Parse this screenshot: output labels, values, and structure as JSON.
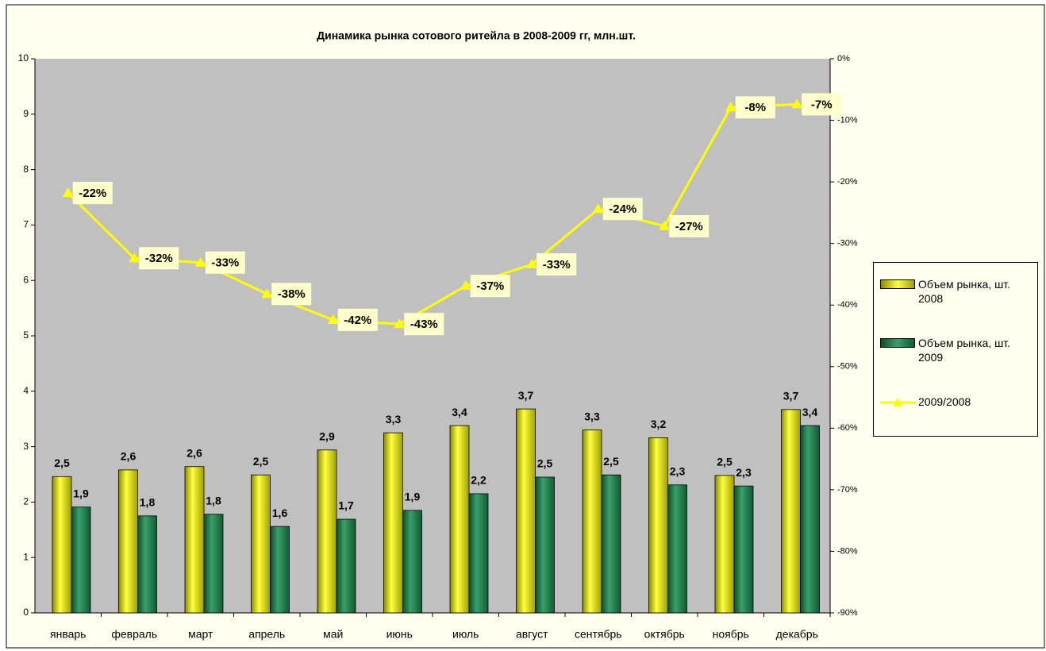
{
  "chart_data": {
    "type": "bar_line",
    "title": "Динамика рынка сотового ритейла в 2008-2009 гг, млн.шт.",
    "categories": [
      "январь",
      "февраль",
      "март",
      "апрель",
      "май",
      "июнь",
      "июль",
      "август",
      "сентябрь",
      "октябрь",
      "ноябрь",
      "декабрь"
    ],
    "series": [
      {
        "name": "Объем рынка, шт. 2008",
        "color": "#e6e600",
        "values": [
          2.46,
          2.58,
          2.64,
          2.49,
          2.94,
          3.25,
          3.38,
          3.68,
          3.3,
          3.16,
          2.48,
          3.67
        ],
        "value_labels": [
          "2,5",
          "2,6",
          "2,6",
          "2,5",
          "2,9",
          "3,3",
          "3,4",
          "3,7",
          "3,3",
          "3,2",
          "2,5",
          "3,7"
        ]
      },
      {
        "name": "Объем рынка, шт. 2009",
        "color": "#1f7a4a",
        "values": [
          1.91,
          1.75,
          1.78,
          1.56,
          1.69,
          1.85,
          2.15,
          2.45,
          2.49,
          2.31,
          2.29,
          3.38
        ],
        "value_labels": [
          "1,9",
          "1,8",
          "1,8",
          "1,6",
          "1,7",
          "1,9",
          "2,2",
          "2,5",
          "2,5",
          "2,3",
          "2,3",
          "3,4"
        ]
      },
      {
        "name": "2009/2008",
        "color": "#ffff00",
        "axis": "y2",
        "values": [
          -21.8,
          -32.4,
          -33.1,
          -38.2,
          -42.4,
          -43.1,
          -36.9,
          -33.4,
          -24.4,
          -27.2,
          -7.9,
          -7.4
        ],
        "value_labels": [
          "-22%",
          "-32%",
          "-33%",
          "-38%",
          "-42%",
          "-43%",
          "-37%",
          "-33%",
          "-24%",
          "-27%",
          "-8%",
          "-7%"
        ]
      }
    ],
    "ylim": [
      0,
      10
    ],
    "yticks": [
      0,
      1,
      2,
      3,
      4,
      5,
      6,
      7,
      8,
      9,
      10
    ],
    "y2lim": [
      -90,
      0
    ],
    "y2ticks": [
      {
        "value": 0,
        "label": "0%"
      },
      {
        "value": -10,
        "label": "-10%"
      },
      {
        "value": -20,
        "label": "-20%"
      },
      {
        "value": -30,
        "label": "-30%"
      },
      {
        "value": -40,
        "label": "-40%"
      },
      {
        "value": -50,
        "label": "-50%"
      },
      {
        "value": -60,
        "label": "-60%"
      },
      {
        "value": -70,
        "label": "-70%"
      },
      {
        "value": -80,
        "label": "-80%"
      },
      {
        "value": -90,
        "label": "-90%"
      }
    ],
    "grid": false,
    "legend": "right"
  }
}
